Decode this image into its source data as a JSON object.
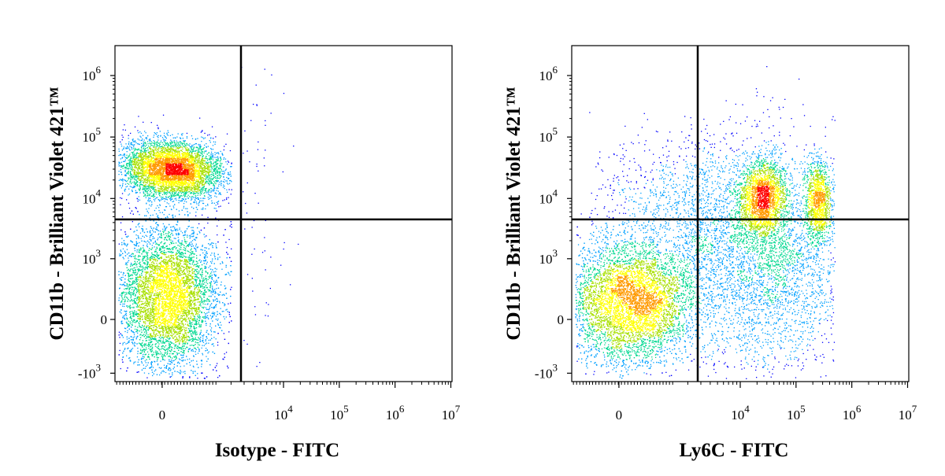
{
  "chart_data": [
    {
      "type": "scatter",
      "subtype": "flow-cytometry-density-dot-plot",
      "title": "",
      "xlabel": "Isotype - FITC",
      "ylabel": "CD11b - Brilliant Violet 421™",
      "x_scale": "biexponential",
      "y_scale": "biexponential",
      "xlim": [
        -1000,
        10000000
      ],
      "ylim": [
        -1500,
        3000000
      ],
      "x_ticks": [
        {
          "value": 0,
          "label": "0"
        },
        {
          "value": 10000,
          "label": "10",
          "exp": "4"
        },
        {
          "value": 100000,
          "label": "10",
          "exp": "5"
        },
        {
          "value": 1000000,
          "label": "10",
          "exp": "6"
        },
        {
          "value": 10000000,
          "label": "10",
          "exp": "7"
        }
      ],
      "y_ticks": [
        {
          "value": -1000,
          "label": "-10",
          "exp": "3"
        },
        {
          "value": 0,
          "label": "0"
        },
        {
          "value": 1000,
          "label": "10",
          "exp": "3"
        },
        {
          "value": 10000,
          "label": "10",
          "exp": "4"
        },
        {
          "value": 100000,
          "label": "10",
          "exp": "5"
        },
        {
          "value": 1000000,
          "label": "10",
          "exp": "6"
        }
      ],
      "quadrant_gate": {
        "x": 1000,
        "y": 4500
      },
      "density_colormap": [
        "#0000ff",
        "#00a0ff",
        "#00d890",
        "#a8e000",
        "#ffff00",
        "#ff9a00",
        "#ff0000"
      ],
      "populations": [
        {
          "x_center": 150,
          "y_center": 30000,
          "relative_size": 0.38
        },
        {
          "x_center": 80,
          "y_center": 200,
          "relative_size": 0.62
        }
      ]
    },
    {
      "type": "scatter",
      "subtype": "flow-cytometry-density-dot-plot",
      "title": "",
      "xlabel": "Ly6C - FITC",
      "ylabel": "CD11b - Brilliant Violet 421™",
      "x_scale": "biexponential",
      "y_scale": "biexponential",
      "xlim": [
        -1000,
        10000000
      ],
      "ylim": [
        -1500,
        3000000
      ],
      "x_ticks": [
        {
          "value": 0,
          "label": "0"
        },
        {
          "value": 10000,
          "label": "10",
          "exp": "4"
        },
        {
          "value": 100000,
          "label": "10",
          "exp": "5"
        },
        {
          "value": 1000000,
          "label": "10",
          "exp": "6"
        },
        {
          "value": 10000000,
          "label": "10",
          "exp": "7"
        }
      ],
      "y_ticks": [
        {
          "value": -1000,
          "label": "-10",
          "exp": "3"
        },
        {
          "value": 0,
          "label": "0"
        },
        {
          "value": 1000,
          "label": "10",
          "exp": "3"
        },
        {
          "value": 10000,
          "label": "10",
          "exp": "4"
        },
        {
          "value": 100000,
          "label": "10",
          "exp": "5"
        },
        {
          "value": 1000000,
          "label": "10",
          "exp": "6"
        }
      ],
      "quadrant_gate": {
        "x": 1000,
        "y": 4500
      },
      "density_colormap": [
        "#0000ff",
        "#00a0ff",
        "#00d890",
        "#a8e000",
        "#ffff00",
        "#ff9a00",
        "#ff0000"
      ],
      "populations": [
        {
          "x_center": 200,
          "y_center": 150,
          "relative_size": 0.5
        },
        {
          "x_center": 25000,
          "y_center": 11000,
          "relative_size": 0.13
        },
        {
          "x_center": 250000,
          "y_center": 9000,
          "relative_size": 0.07
        },
        {
          "x_center": 10000,
          "y_center": 500,
          "relative_size": 0.3
        }
      ]
    }
  ]
}
